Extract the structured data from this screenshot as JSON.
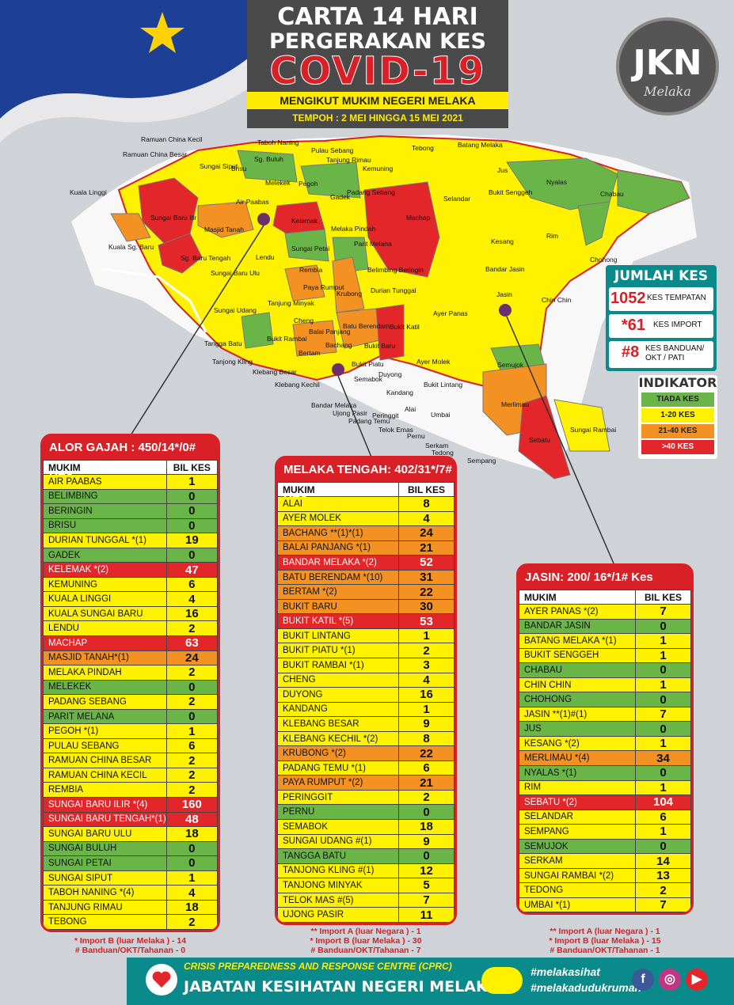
{
  "header": {
    "line1": "CARTA 14 HARI",
    "line2": "PERGERAKAN KES",
    "line3": "COVID-19",
    "subtitle": "MENGIKUT MUKIM NEGERI MELAKA",
    "period": "TEMPOH : 2 MEI HINGGA 15 MEI  2021"
  },
  "logo": {
    "text": "JKN",
    "sub": "Melaka"
  },
  "map_labels": [
    {
      "text": "Ramuan China Kecil"
    },
    {
      "text": "Ramuan China Besar"
    },
    {
      "text": "Taboh Naning"
    },
    {
      "text": "Pulau Sebang"
    },
    {
      "text": "Tebong"
    },
    {
      "text": "Batang Melaka"
    },
    {
      "text": "Kuala Linggi"
    },
    {
      "text": "Sungai Siput"
    },
    {
      "text": "Brisu"
    },
    {
      "text": "Sg. Buluh"
    },
    {
      "text": "Tanjung Rimau"
    },
    {
      "text": "Kemuning"
    },
    {
      "text": "Jus"
    },
    {
      "text": "Nyalas"
    },
    {
      "text": "Chabau"
    },
    {
      "text": "Air Paabas"
    },
    {
      "text": "Melekek"
    },
    {
      "text": "Pegoh"
    },
    {
      "text": "Padang Sebang"
    },
    {
      "text": "Gadek"
    },
    {
      "text": "Selandar"
    },
    {
      "text": "Bukit Senggeh"
    },
    {
      "text": "Sungai Baru Ilir"
    },
    {
      "text": "Kelemak"
    },
    {
      "text": "Machap"
    },
    {
      "text": "Masjid Tanah"
    },
    {
      "text": "Kuala Sg. Baru"
    },
    {
      "text": "Melaka Pindah"
    },
    {
      "text": "Rim"
    },
    {
      "text": "Kesang"
    },
    {
      "text": "Lendu"
    },
    {
      "text": "Sg. Baru Tengah"
    },
    {
      "text": "Sungai Petai"
    },
    {
      "text": "Parit Melana"
    },
    {
      "text": "Chohong"
    },
    {
      "text": "Sungai Baru Ulu"
    },
    {
      "text": "Rembia"
    },
    {
      "text": "Belimbing Beringin"
    },
    {
      "text": "Bandar Jasin"
    },
    {
      "text": "Krubong"
    },
    {
      "text": "Durian Tunggal"
    },
    {
      "text": "Paya Rumput"
    },
    {
      "text": "Jasin"
    },
    {
      "text": "Chin Chin"
    },
    {
      "text": "Sungai Udang"
    },
    {
      "text": "Tanjung Minyak"
    },
    {
      "text": "Ayer Panas"
    },
    {
      "text": "Cheng"
    },
    {
      "text": "Batu Berendam"
    },
    {
      "text": "Balai Panjang"
    },
    {
      "text": "Bukit Katil"
    },
    {
      "text": "Bukit Rambai"
    },
    {
      "text": "Tangga Batu"
    },
    {
      "text": "Bachang"
    },
    {
      "text": "Bertam"
    },
    {
      "text": "Bukit Baru"
    },
    {
      "text": "Tanjong Kling"
    },
    {
      "text": "Bukit Piatu"
    },
    {
      "text": "Ayer Molek"
    },
    {
      "text": "Semujok"
    },
    {
      "text": "Klebang Besar"
    },
    {
      "text": "Duyong"
    },
    {
      "text": "Klebang Kechil"
    },
    {
      "text": "Semabok"
    },
    {
      "text": "Bukit Lintang"
    },
    {
      "text": "Merlimau"
    },
    {
      "text": "Kandang"
    },
    {
      "text": "Bandar Melaka"
    },
    {
      "text": "Ujong Pasir"
    },
    {
      "text": "Alai"
    },
    {
      "text": "Padang Temu"
    },
    {
      "text": "Umbai"
    },
    {
      "text": "Sebatu"
    },
    {
      "text": "Sungai Rambai"
    },
    {
      "text": "Telok Emas"
    },
    {
      "text": "Pernu"
    },
    {
      "text": "Serkam"
    },
    {
      "text": "Tedong"
    },
    {
      "text": "Sempang"
    },
    {
      "text": "Peringgit"
    }
  ],
  "totals": {
    "title": "JUMLAH KES",
    "rows": [
      {
        "num": "1052",
        "label": "KES TEMPATAN"
      },
      {
        "num": "*61",
        "label": "KES IMPORT"
      },
      {
        "num": "#8",
        "label": "KES BANDUAN/ OKT / PATI"
      }
    ]
  },
  "indicator": {
    "title": "INDIKATOR",
    "rows": [
      {
        "label": "TIADA KES",
        "color": "#6ab547"
      },
      {
        "label": "1-20  KES",
        "color": "#fff200"
      },
      {
        "label": "21-40  KES",
        "color": "#f39222"
      },
      {
        "label": ">40    KES",
        "color": "#e3262a"
      }
    ]
  },
  "chart_data": [
    {
      "type": "table",
      "title": "ALOR GAJAH : 450/14*/0# KES",
      "columns": [
        "MUKIM",
        "BIL KES"
      ],
      "rows": [
        {
          "mukim": "AIR PAABAS",
          "kes": "1",
          "level": "yellow"
        },
        {
          "mukim": "BELIMBING",
          "kes": "0",
          "level": "green"
        },
        {
          "mukim": "BERINGIN",
          "kes": "0",
          "level": "green"
        },
        {
          "mukim": "BRISU",
          "kes": "0",
          "level": "green"
        },
        {
          "mukim": "DURIAN TUNGGAL *(1)",
          "kes": "19",
          "level": "yellow"
        },
        {
          "mukim": "GADEK",
          "kes": "0",
          "level": "green"
        },
        {
          "mukim": "KELEMAK *(2)",
          "kes": "47",
          "level": "red"
        },
        {
          "mukim": "KEMUNING",
          "kes": "6",
          "level": "yellow"
        },
        {
          "mukim": "KUALA LINGGI",
          "kes": "4",
          "level": "yellow"
        },
        {
          "mukim": "KUALA SUNGAI BARU",
          "kes": "16",
          "level": "yellow"
        },
        {
          "mukim": "LENDU",
          "kes": "2",
          "level": "yellow"
        },
        {
          "mukim": "MACHAP",
          "kes": "63",
          "level": "red"
        },
        {
          "mukim": "MASJID TANAH*(1)",
          "kes": "24",
          "level": "orange"
        },
        {
          "mukim": "MELAKA PINDAH",
          "kes": "2",
          "level": "yellow"
        },
        {
          "mukim": "MELEKEK",
          "kes": "0",
          "level": "green"
        },
        {
          "mukim": "PADANG SEBANG",
          "kes": "2",
          "level": "yellow"
        },
        {
          "mukim": "PARIT MELANA",
          "kes": "0",
          "level": "green"
        },
        {
          "mukim": "PEGOH *(1)",
          "kes": "1",
          "level": "yellow"
        },
        {
          "mukim": "PULAU SEBANG",
          "kes": "6",
          "level": "yellow"
        },
        {
          "mukim": "RAMUAN CHINA BESAR",
          "kes": "2",
          "level": "yellow"
        },
        {
          "mukim": "RAMUAN CHINA KECIL",
          "kes": "2",
          "level": "yellow"
        },
        {
          "mukim": "REMBIA",
          "kes": "2",
          "level": "yellow"
        },
        {
          "mukim": "SUNGAI BARU ILIR *(4)",
          "kes": "160",
          "level": "red"
        },
        {
          "mukim": "SUNGAI BARU TENGAH*(1)",
          "kes": "48",
          "level": "red"
        },
        {
          "mukim": "SUNGAI BARU ULU",
          "kes": "18",
          "level": "yellow"
        },
        {
          "mukim": "SUNGAI BULUH",
          "kes": "0",
          "level": "green"
        },
        {
          "mukim": "SUNGAI PETAI",
          "kes": "0",
          "level": "green"
        },
        {
          "mukim": "SUNGAI SIPUT",
          "kes": "1",
          "level": "yellow"
        },
        {
          "mukim": "TABOH NANING *(4)",
          "kes": "4",
          "level": "yellow"
        },
        {
          "mukim": "TANJUNG RIMAU",
          "kes": "18",
          "level": "yellow"
        },
        {
          "mukim": "TEBONG",
          "kes": "2",
          "level": "yellow"
        }
      ],
      "footnotes": [
        "* Import B (luar Melaka ) - 14",
        "# Banduan/OKT/Tahanan - 0"
      ]
    },
    {
      "type": "table",
      "title": "MELAKA TENGAH: 402/31*/7# KES",
      "columns": [
        "MUKIM",
        "BIL KES"
      ],
      "rows": [
        {
          "mukim": "ALAI",
          "kes": "8",
          "level": "yellow"
        },
        {
          "mukim": "AYER  MOLEK",
          "kes": "4",
          "level": "yellow"
        },
        {
          "mukim": "BACHANG  **(1)*(1)",
          "kes": "24",
          "level": "orange"
        },
        {
          "mukim": "BALAI  PANJANG *(1)",
          "kes": "21",
          "level": "orange"
        },
        {
          "mukim": "BANDAR  MELAKA *(2)",
          "kes": "52",
          "level": "red"
        },
        {
          "mukim": "BATU  BERENDAM *(10)",
          "kes": "31",
          "level": "orange"
        },
        {
          "mukim": "BERTAM  *(2)",
          "kes": "22",
          "level": "orange"
        },
        {
          "mukim": "BUKIT  BARU",
          "kes": "30",
          "level": "orange"
        },
        {
          "mukim": "BUKIT  KATIL  *(5)",
          "kes": "53",
          "level": "red"
        },
        {
          "mukim": "BUKIT  LINTANG",
          "kes": "1",
          "level": "yellow"
        },
        {
          "mukim": "BUKIT  PIATU *(1)",
          "kes": "2",
          "level": "yellow"
        },
        {
          "mukim": "BUKIT  RAMBAI  *(1)",
          "kes": "3",
          "level": "yellow"
        },
        {
          "mukim": "CHENG",
          "kes": "4",
          "level": "yellow"
        },
        {
          "mukim": "DUYONG",
          "kes": "16",
          "level": "yellow"
        },
        {
          "mukim": "KANDANG",
          "kes": "1",
          "level": "yellow"
        },
        {
          "mukim": "KLEBANG  BESAR",
          "kes": "9",
          "level": "yellow"
        },
        {
          "mukim": "KLEBANG  KECHIL *(2)",
          "kes": "8",
          "level": "yellow"
        },
        {
          "mukim": "KRUBONG  *(2)",
          "kes": "22",
          "level": "orange"
        },
        {
          "mukim": "PADANG TEMU  *(1)",
          "kes": "6",
          "level": "yellow"
        },
        {
          "mukim": "PAYA  RUMPUT  *(2)",
          "kes": "21",
          "level": "orange"
        },
        {
          "mukim": "PERINGGIT",
          "kes": "2",
          "level": "yellow"
        },
        {
          "mukim": "PERNU",
          "kes": "0",
          "level": "green"
        },
        {
          "mukim": "SEMABOK",
          "kes": "18",
          "level": "yellow"
        },
        {
          "mukim": "SUNGAI  UDANG  #(1)",
          "kes": "9",
          "level": "yellow"
        },
        {
          "mukim": "TANGGA  BATU",
          "kes": "0",
          "level": "green"
        },
        {
          "mukim": "TANJONG  KLING  #(1)",
          "kes": "12",
          "level": "yellow"
        },
        {
          "mukim": "TANJONG  MINYAK",
          "kes": "5",
          "level": "yellow"
        },
        {
          "mukim": "TELOK  MAS  #(5)",
          "kes": "7",
          "level": "yellow"
        },
        {
          "mukim": "UJONG  PASIR",
          "kes": "11",
          "level": "yellow"
        }
      ],
      "footnotes": [
        "** Import A (luar Negara ) - 1",
        "* Import B (luar Melaka ) - 30",
        "# Banduan/OKT/Tahanan - 7"
      ]
    },
    {
      "type": "table",
      "title": "JASIN:  200/ 16*/1# Kes",
      "columns": [
        "MUKIM",
        "BIL KES"
      ],
      "rows": [
        {
          "mukim": "AYER PANAS *(2)",
          "kes": "7",
          "level": "yellow"
        },
        {
          "mukim": "BANDAR JASIN",
          "kes": "0",
          "level": "green"
        },
        {
          "mukim": "BATANG MELAKA *(1)",
          "kes": "1",
          "level": "yellow"
        },
        {
          "mukim": "BUKIT  SENGGEH",
          "kes": "1",
          "level": "yellow"
        },
        {
          "mukim": "CHABAU",
          "kes": "0",
          "level": "green"
        },
        {
          "mukim": "CHIN  CHIN",
          "kes": "1",
          "level": "yellow"
        },
        {
          "mukim": "CHOHONG",
          "kes": "0",
          "level": "green"
        },
        {
          "mukim": "JASIN **(1)#(1)",
          "kes": "7",
          "level": "yellow"
        },
        {
          "mukim": "JUS",
          "kes": "0",
          "level": "green"
        },
        {
          "mukim": "KESANG *(2)",
          "kes": "1",
          "level": "yellow"
        },
        {
          "mukim": "MERLIMAU *(4)",
          "kes": "34",
          "level": "orange"
        },
        {
          "mukim": "NYALAS *(1)",
          "kes": "0",
          "level": "green"
        },
        {
          "mukim": "RIM",
          "kes": "1",
          "level": "yellow"
        },
        {
          "mukim": "SEBATU *(2)",
          "kes": "104",
          "level": "red"
        },
        {
          "mukim": "SELANDAR",
          "kes": "6",
          "level": "yellow"
        },
        {
          "mukim": "SEMPANG",
          "kes": "1",
          "level": "yellow"
        },
        {
          "mukim": "SEMUJOK",
          "kes": "0",
          "level": "green"
        },
        {
          "mukim": "SERKAM",
          "kes": "14",
          "level": "yellow"
        },
        {
          "mukim": "SUNGAI RAMBAI *(2)",
          "kes": "13",
          "level": "yellow"
        },
        {
          "mukim": "TEDONG",
          "kes": "2",
          "level": "yellow"
        },
        {
          "mukim": "UMBAI *(1)",
          "kes": "7",
          "level": "yellow"
        }
      ],
      "footnotes": [
        "** Import A (luar Negara ) - 1",
        "* Import B (luar Melaka ) - 15",
        "# Banduan/OKT/Tahanan - 1"
      ]
    }
  ],
  "footer": {
    "cprc": "CRISIS PREPAREDNESS AND RESPONSE CENTRE (CPRC)",
    "jkn": "JABATAN KESIHATAN NEGERI MELAKA",
    "tag1": "#melakasihat",
    "tag2": "#melakadudukrumah"
  }
}
